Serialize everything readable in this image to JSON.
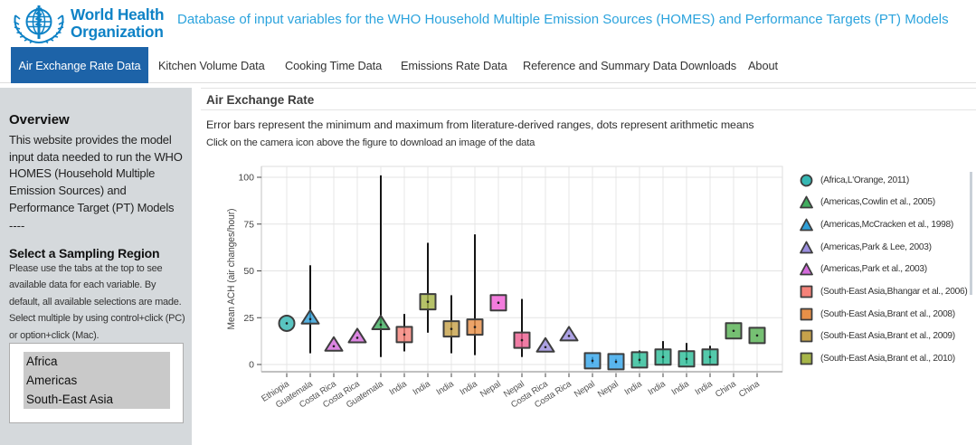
{
  "header": {
    "logo_line1": "World Health",
    "logo_line2": "Organization",
    "title": "Database of input variables for the WHO Household Multiple Emission Sources (HOMES) and Performance Targets (PT) Models"
  },
  "nav": {
    "tabs": [
      {
        "label": "Air Exchange Rate Data",
        "active": true
      },
      {
        "label": "Kitchen Volume Data",
        "active": false
      },
      {
        "label": "Cooking Time Data",
        "active": false
      },
      {
        "label": "Emissions Rate Data",
        "active": false
      },
      {
        "label": "Reference and Summary Data Downloads",
        "active": false
      },
      {
        "label": "About",
        "active": false
      }
    ]
  },
  "sidebar": {
    "overview_title": "Overview",
    "overview_text": "This website provides the model\ninput data needed to run the WHO\nHOMES (Household Multiple\nEmission Sources) and\nPerformance Target (PT) Models",
    "divider": "----",
    "region_title": "Select a Sampling Region",
    "region_help": "Please use the tabs at the top to see\navailable data for each variable. By\ndefault, all available selections are made.\nSelect multiple by using control+click (PC)\nor option+click (Mac).",
    "region_options": [
      {
        "label": "Africa",
        "selected": true
      },
      {
        "label": "Americas",
        "selected": true
      },
      {
        "label": "South-East Asia",
        "selected": true
      }
    ]
  },
  "main": {
    "panel_title": "Air Exchange Rate",
    "subtitle": "Error bars represent the minimum and maximum from literature-derived ranges, dots represent arithmetic means",
    "hint": "Click on the camera icon above the figure to download an image of the data"
  },
  "chart_data": {
    "type": "scatter",
    "title": "",
    "xlabel": "",
    "ylabel": "Mean ACH (air changes/hour)",
    "ylim": [
      -4,
      106
    ],
    "yticks": [
      0,
      25,
      50,
      75,
      100
    ],
    "grid": true,
    "legend_position": "right",
    "categories": [
      "Ethiopia",
      "Guatemala",
      "Costa Rica",
      "Costa Rica",
      "Guatemala",
      "India",
      "India",
      "India",
      "India",
      "Nepal",
      "Nepal",
      "Costa Rica",
      "Costa Rica",
      "Nepal",
      "Nepal",
      "India",
      "India",
      "India",
      "India",
      "China",
      "China"
    ],
    "points": [
      {
        "category": "Ethiopia",
        "shape": "circle",
        "color": "#35b7b3",
        "mean": 22,
        "min": null,
        "max": null
      },
      {
        "category": "Guatemala",
        "shape": "triangle",
        "color": "#2f9fd8",
        "mean": 25,
        "min": 6,
        "max": 53
      },
      {
        "category": "Costa Rica",
        "shape": "triangle",
        "color": "#d46bdc",
        "mean": 10.5,
        "min": null,
        "max": null
      },
      {
        "category": "Costa Rica",
        "shape": "triangle",
        "color": "#d46bdc",
        "mean": 15,
        "min": null,
        "max": null
      },
      {
        "category": "Guatemala",
        "shape": "triangle",
        "color": "#41ad5f",
        "mean": 22,
        "min": 4,
        "max": 101
      },
      {
        "category": "India",
        "shape": "square",
        "color": "#f58279",
        "mean": 16,
        "min": 7,
        "max": 27
      },
      {
        "category": "India",
        "shape": "square",
        "color": "#a6b548",
        "mean": 33.5,
        "min": 17,
        "max": 65
      },
      {
        "category": "India",
        "shape": "square",
        "color": "#c7a24b",
        "mean": 19,
        "min": 6,
        "max": 37
      },
      {
        "category": "India",
        "shape": "square",
        "color": "#e89048",
        "mean": 20,
        "min": 5,
        "max": 69.5
      },
      {
        "category": "Nepal",
        "shape": "square",
        "color": "#f05fd5",
        "mean": 33,
        "min": null,
        "max": null
      },
      {
        "category": "Nepal",
        "shape": "square",
        "color": "#ed5f90",
        "mean": 13,
        "min": 4,
        "max": 35
      },
      {
        "category": "Costa Rica",
        "shape": "triangle",
        "color": "#9b8ede",
        "mean": 10,
        "min": null,
        "max": null
      },
      {
        "category": "Costa Rica",
        "shape": "triangle",
        "color": "#9b8ede",
        "mean": 16,
        "min": null,
        "max": null
      },
      {
        "category": "Nepal",
        "shape": "square",
        "color": "#36a6ea",
        "mean": 2,
        "min": 0.5,
        "max": 4
      },
      {
        "category": "Nepal",
        "shape": "square",
        "color": "#36a6ea",
        "mean": 1.5,
        "min": 0.5,
        "max": 3
      },
      {
        "category": "India",
        "shape": "square",
        "color": "#2ebd98",
        "mean": 2.5,
        "min": 0.5,
        "max": 7.5
      },
      {
        "category": "India",
        "shape": "square",
        "color": "#2ebd98",
        "mean": 4,
        "min": 0.5,
        "max": 12.5
      },
      {
        "category": "India",
        "shape": "square",
        "color": "#2ebd98",
        "mean": 3,
        "min": 0.5,
        "max": 11.5
      },
      {
        "category": "India",
        "shape": "square",
        "color": "#2ebd98",
        "mean": 4,
        "min": 0.5,
        "max": 10
      },
      {
        "category": "China",
        "shape": "square",
        "color": "#58b254",
        "mean": 18,
        "min": null,
        "max": null
      },
      {
        "category": "China",
        "shape": "square",
        "color": "#58b254",
        "mean": 15.5,
        "min": null,
        "max": null
      }
    ],
    "legend": [
      {
        "label": "(Africa,L'Orange, 2011)",
        "shape": "circle",
        "color": "#35b7b3"
      },
      {
        "label": "(Americas,Cowlin et al., 2005)",
        "shape": "triangle",
        "color": "#41ad5f"
      },
      {
        "label": "(Americas,McCracken et al., 1998)",
        "shape": "triangle",
        "color": "#2f9fd8"
      },
      {
        "label": "(Americas,Park & Lee, 2003)",
        "shape": "triangle",
        "color": "#9b8ede"
      },
      {
        "label": "(Americas,Park et al., 2003)",
        "shape": "triangle",
        "color": "#d46bdc"
      },
      {
        "label": "(South-East Asia,Bhangar et al., 2006)",
        "shape": "square",
        "color": "#f58279"
      },
      {
        "label": "(South-East Asia,Brant et al., 2008)",
        "shape": "square",
        "color": "#e89048"
      },
      {
        "label": "(South-East Asia,Brant et al., 2009)",
        "shape": "square",
        "color": "#c7a24b"
      },
      {
        "label": "(South-East Asia,Brant et al., 2010)",
        "shape": "square",
        "color": "#a6b548"
      }
    ]
  }
}
